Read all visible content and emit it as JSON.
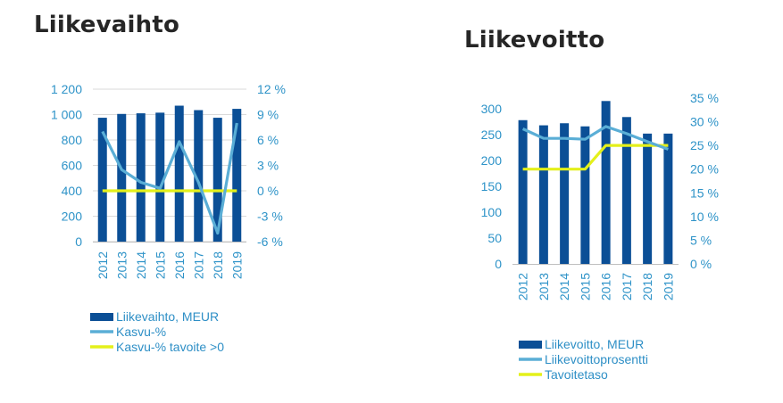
{
  "charts": [
    {
      "title": "Liikevaihto"
    },
    {
      "title": "Liikevoitto"
    }
  ],
  "colors": {
    "bar": "#0b4f96",
    "line": "#5aaed6",
    "target": "#e4f01a",
    "axis_text": "#2e93c8",
    "grid": "#d9d9d9"
  },
  "chart_data": [
    {
      "type": "bar",
      "title": "Liikevaihto",
      "categories": [
        "2012",
        "2013",
        "2014",
        "2015",
        "2016",
        "2017",
        "2018",
        "2019"
      ],
      "y_left": {
        "ylim": [
          0,
          1200
        ],
        "ticks": [
          "0",
          "200",
          "400",
          "600",
          "800",
          "1 000",
          "1 200"
        ],
        "tick_values": [
          0,
          200,
          400,
          600,
          800,
          1000,
          1200
        ]
      },
      "y_right": {
        "ylim": [
          -6,
          12
        ],
        "ticks": [
          "-6 %",
          "-3 %",
          "0 %",
          "3 %",
          "6 %",
          "9 %",
          "12 %"
        ],
        "tick_values": [
          -6,
          -3,
          0,
          3,
          6,
          9,
          12
        ]
      },
      "grid": true,
      "legend_position": "bottom",
      "series": [
        {
          "name": "Liikevaihto, MEUR",
          "type": "bar",
          "axis": "left",
          "values": [
            975,
            1005,
            1010,
            1015,
            1070,
            1035,
            975,
            1045
          ]
        },
        {
          "name": "Kasvu-%",
          "type": "line",
          "axis": "right",
          "values": [
            7,
            2.5,
            1,
            0.3,
            5.8,
            1,
            -5,
            8
          ]
        },
        {
          "name": "Kasvu-% tavoite >0",
          "type": "line",
          "axis": "right",
          "values": [
            0,
            0,
            0,
            0,
            0,
            0,
            0,
            0
          ]
        }
      ]
    },
    {
      "type": "bar",
      "title": "Liikevoitto",
      "categories": [
        "2012",
        "2013",
        "2014",
        "2015",
        "2016",
        "2017",
        "2018",
        "2019"
      ],
      "y_left": {
        "ylim": [
          0,
          300
        ],
        "ticks": [
          "0",
          "50",
          "100",
          "150",
          "200",
          "250",
          "300"
        ],
        "tick_values": [
          0,
          50,
          100,
          150,
          200,
          250,
          300
        ]
      },
      "y_right": {
        "ylim": [
          0,
          35
        ],
        "ticks": [
          "0 %",
          "5 %",
          "10 %",
          "15 %",
          "20 %",
          "25 %",
          "30 %",
          "35 %"
        ],
        "tick_values": [
          0,
          5,
          10,
          15,
          20,
          25,
          30,
          35
        ]
      },
      "grid": false,
      "legend_position": "bottom",
      "series": [
        {
          "name": "Liikevoitto, MEUR",
          "type": "bar",
          "axis": "left",
          "values": [
            278,
            268,
            272,
            266,
            315,
            284,
            252,
            252
          ]
        },
        {
          "name": "Liikevoittoprosentti",
          "type": "line",
          "axis": "right",
          "values": [
            28.5,
            26.5,
            26.5,
            26.3,
            29,
            27.5,
            25.8,
            24.2
          ]
        },
        {
          "name": "Tavoitetaso",
          "type": "line",
          "axis": "right",
          "values": [
            20,
            20,
            20,
            20,
            25,
            25,
            25,
            25
          ]
        }
      ]
    }
  ]
}
